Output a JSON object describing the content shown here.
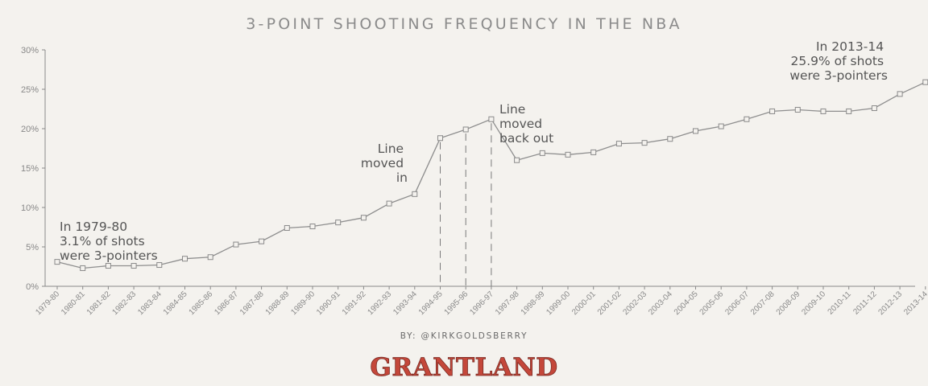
{
  "chart_data": {
    "type": "line",
    "title": "3-POINT SHOOTING FREQUENCY IN THE NBA",
    "xlabel": "",
    "ylabel": "",
    "ylim": [
      0,
      30
    ],
    "yticks": [
      "0%",
      "5%",
      "10%",
      "15%",
      "20%",
      "25%",
      "30%"
    ],
    "grid": false,
    "categories": [
      "1979-80",
      "1980-81",
      "1981-82",
      "1982-83",
      "1983-84",
      "1984-85",
      "1985-86",
      "1986-87",
      "1987-88",
      "1988-89",
      "1989-90",
      "1990-91",
      "1991-92",
      "1992-93",
      "1993-94",
      "1994-95",
      "1995-96",
      "1996-97",
      "1997-98",
      "1998-99",
      "1999-00",
      "2000-01",
      "2001-02",
      "2002-03",
      "2003-04",
      "2004-05",
      "2005-06",
      "2006-07",
      "2007-08",
      "2008-09",
      "2009-10",
      "2010-11",
      "2011-12",
      "2012-13",
      "2013-14"
    ],
    "values": [
      3.1,
      2.3,
      2.6,
      2.6,
      2.7,
      3.5,
      3.7,
      5.3,
      5.7,
      7.4,
      7.6,
      8.1,
      8.7,
      10.5,
      11.7,
      18.8,
      19.9,
      21.2,
      16.0,
      16.9,
      16.7,
      17.0,
      18.1,
      18.2,
      18.7,
      19.7,
      20.3,
      21.2,
      22.2,
      22.4,
      22.2,
      22.2,
      22.6,
      24.4,
      25.9
    ],
    "reference_lines": [
      "1994-95",
      "1995-96",
      "1996-97"
    ],
    "annotations": [
      {
        "lines": [
          "In 1979-80",
          "3.1% of shots",
          "were 3-pointers"
        ]
      },
      {
        "lines": [
          "Line",
          "moved",
          "in"
        ]
      },
      {
        "lines": [
          "Line",
          "moved",
          "back out"
        ]
      },
      {
        "lines": [
          "In 2013-14",
          "25.9% of shots",
          "were 3-pointers"
        ]
      }
    ]
  },
  "credit": "BY: @KIRKGOLDSBERRY",
  "brand": "GRANTLAND",
  "colors": {
    "line": "#8e8e8e",
    "marker_fill": "#f4f2ee",
    "axis": "#888888",
    "brand": "#c4473a"
  }
}
